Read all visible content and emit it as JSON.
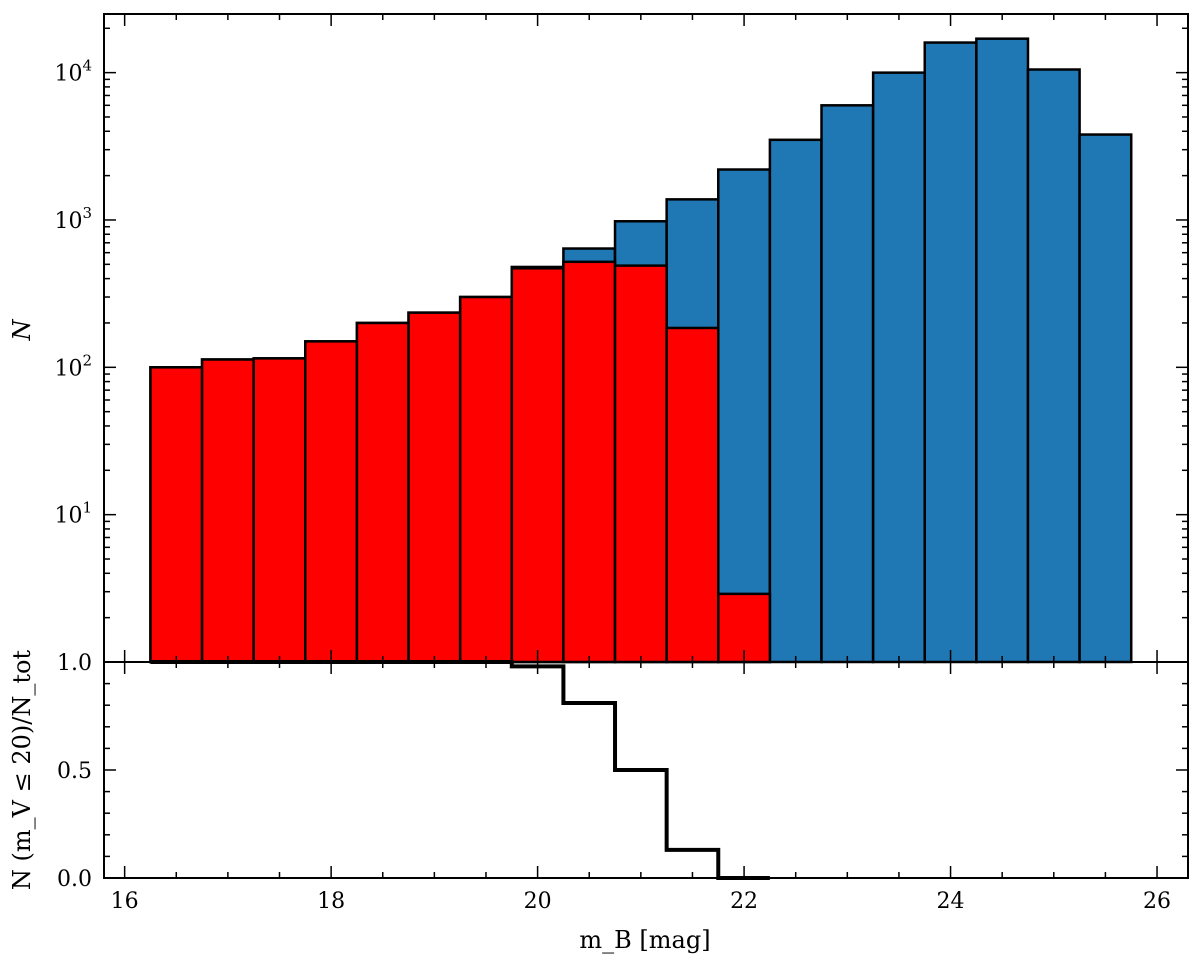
{
  "chart_data": [
    {
      "type": "bar",
      "panel": "top",
      "ylabel": "N",
      "yscale": "log",
      "ylim": [
        1,
        25000
      ],
      "xlim": [
        15.8,
        26.3
      ],
      "y_ticks": [
        {
          "value": 1,
          "label": "1.0"
        },
        {
          "value": 10,
          "label": "10",
          "sup": "1"
        },
        {
          "value": 100,
          "label": "10",
          "sup": "2"
        },
        {
          "value": 1000,
          "label": "10",
          "sup": "3"
        },
        {
          "value": 10000,
          "label": "10",
          "sup": "4"
        }
      ],
      "bin_width": 0.5,
      "bin_centers": [
        16.5,
        17.0,
        17.5,
        18.0,
        18.5,
        19.0,
        19.5,
        20.0,
        20.5,
        21.0,
        21.5,
        22.0,
        22.5,
        23.0,
        23.5,
        24.0,
        24.5,
        25.0,
        25.5
      ],
      "series": [
        {
          "color": "#1f77b4",
          "values": [
            100,
            113,
            115,
            150,
            200,
            235,
            300,
            480,
            640,
            980,
            1380,
            2200,
            3500,
            6000,
            10000,
            16000,
            17000,
            10500,
            3800
          ]
        },
        {
          "color": "#ff0000",
          "values": [
            100,
            113,
            115,
            150,
            200,
            235,
            300,
            470,
            520,
            490,
            185,
            2.9,
            0,
            0,
            0,
            0,
            0,
            0,
            0
          ]
        }
      ]
    },
    {
      "type": "line",
      "panel": "bottom",
      "step": true,
      "ylabel": "N (m_V ≤ 20)/N_tot",
      "xlabel": "m_B [mag]",
      "ylim": [
        0,
        1
      ],
      "xlim": [
        15.8,
        26.3
      ],
      "y_ticks": [
        "0.0",
        "0.5",
        "1.0"
      ],
      "x_ticks": [
        "16",
        "18",
        "20",
        "22",
        "24",
        "26"
      ],
      "x": [
        16.5,
        17.0,
        17.5,
        18.0,
        18.5,
        19.0,
        19.5,
        20.0,
        20.5,
        21.0,
        21.5,
        22.0
      ],
      "values": [
        1.0,
        1.0,
        1.0,
        1.0,
        1.0,
        1.0,
        1.0,
        0.98,
        0.81,
        0.5,
        0.13,
        0.0
      ],
      "color": "#000000"
    }
  ]
}
